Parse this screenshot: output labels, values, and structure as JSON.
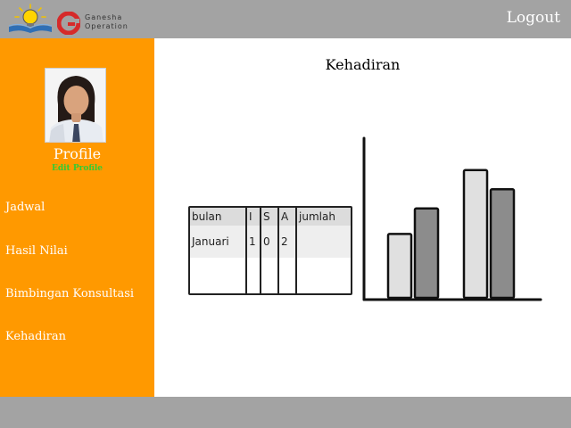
{
  "header": {
    "brand_line1": "Ganesha",
    "brand_line2": "Operation",
    "logout_label": "Logout",
    "logo_icon": "lightbulb-book-icon",
    "brand_mark_icon": "ganesha-g-icon"
  },
  "sidebar": {
    "profile_title": "Profile",
    "edit_profile_label": "Edit Profile",
    "avatar_icon": "profile-photo",
    "items": [
      {
        "label": "Jadwal"
      },
      {
        "label": "Hasil Nilai"
      },
      {
        "label": "Bimbingan Konsultasi"
      },
      {
        "label": "Kehadiran"
      }
    ]
  },
  "main": {
    "title": "Kehadiran",
    "table": {
      "headers": [
        "bulan",
        "I",
        "S",
        "A",
        "jumlah"
      ],
      "rows": [
        [
          "Januari",
          "1",
          "0",
          "2",
          ""
        ]
      ]
    }
  },
  "colors": {
    "topbar": "#a3a3a3",
    "sidebar": "#ff9900",
    "edit_profile": "#33cc33",
    "bar_light": "#e0e0e0",
    "bar_dark": "#8c8c8c"
  },
  "chart_data": {
    "type": "bar",
    "title": "",
    "xlabel": "",
    "ylabel": "",
    "categories": [
      "",
      ""
    ],
    "series": [
      {
        "values": [
          0.4,
          0.8
        ]
      },
      {
        "values": [
          0.56,
          0.68
        ]
      }
    ],
    "ylim": [
      0,
      1
    ],
    "grid": false
  }
}
